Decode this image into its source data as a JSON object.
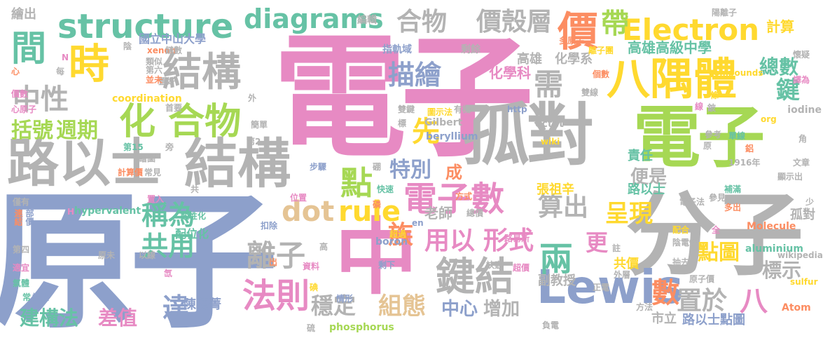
{
  "palette": {
    "pink": "#e78ac3",
    "gray": "#b3b3b3",
    "yellow": "#ffd92f",
    "blue": "#8da0cb",
    "green": "#a6d854",
    "teal": "#66c2a5",
    "orange": "#fc8d62",
    "tan": "#e5c494"
  },
  "words": [
    {
      "t": "電子",
      "c": "pink"
    },
    {
      "t": "原子",
      "c": "blue"
    },
    {
      "t": "分子",
      "c": "gray"
    },
    {
      "t": "電子",
      "c": "green"
    },
    {
      "t": "孤對",
      "c": "gray"
    },
    {
      "t": "中",
      "c": "pink"
    },
    {
      "t": "路以士",
      "c": "gray"
    },
    {
      "t": "結構",
      "c": "gray"
    },
    {
      "t": "Lewis",
      "c": "blue"
    },
    {
      "t": "鍵結",
      "c": "gray"
    },
    {
      "t": "電子數",
      "c": "pink"
    },
    {
      "t": "結構",
      "c": "gray"
    },
    {
      "t": "八隅體",
      "c": "yellow"
    },
    {
      "t": "structure",
      "c": "teal"
    },
    {
      "t": "Electron",
      "c": "yellow"
    },
    {
      "t": "diagrams",
      "c": "teal"
    },
    {
      "t": "化 合物",
      "c": "green"
    },
    {
      "t": "時",
      "c": "yellow"
    },
    {
      "t": "間",
      "c": "teal"
    },
    {
      "t": "價",
      "c": "orange"
    },
    {
      "t": "dot",
      "c": "tan"
    },
    {
      "t": "rule",
      "c": "yellow"
    },
    {
      "t": "法則",
      "c": "pink"
    },
    {
      "t": "離子",
      "c": "gray"
    },
    {
      "t": "兩",
      "c": "teal"
    },
    {
      "t": "點",
      "c": "green"
    },
    {
      "t": "中性",
      "c": "gray"
    },
    {
      "t": "括號",
      "c": "green"
    },
    {
      "t": "週期",
      "c": "green"
    },
    {
      "t": "合物",
      "c": "gray"
    },
    {
      "t": "價殼層",
      "c": "gray"
    },
    {
      "t": "帶",
      "c": "green"
    },
    {
      "t": "描繪",
      "c": "blue"
    },
    {
      "t": "需",
      "c": "gray"
    },
    {
      "t": "先",
      "c": "yellow"
    },
    {
      "t": "特別",
      "c": "blue"
    },
    {
      "t": "稱為",
      "c": "teal"
    },
    {
      "t": "共用",
      "c": "teal"
    },
    {
      "t": "族",
      "c": "orange"
    },
    {
      "t": "用以",
      "c": "pink"
    },
    {
      "t": "形式",
      "c": "pink"
    },
    {
      "t": "算出",
      "c": "gray"
    },
    {
      "t": "呈現",
      "c": "yellow"
    },
    {
      "t": "點圖",
      "c": "yellow"
    },
    {
      "t": "置於",
      "c": "gray"
    },
    {
      "t": "數",
      "c": "orange"
    },
    {
      "t": "八",
      "c": "pink"
    },
    {
      "t": "組態",
      "c": "tan"
    },
    {
      "t": "穩定",
      "c": "gray"
    },
    {
      "t": "達",
      "c": "blue"
    },
    {
      "t": "差值",
      "c": "pink"
    },
    {
      "t": "建構法",
      "c": "teal"
    },
    {
      "t": "中心",
      "c": "blue"
    },
    {
      "t": "增加",
      "c": "gray"
    },
    {
      "t": "標示",
      "c": "gray"
    },
    {
      "t": "更",
      "c": "pink"
    },
    {
      "t": "鍵",
      "c": "teal"
    },
    {
      "t": "總數",
      "c": "teal"
    },
    {
      "t": "計算",
      "c": "yellow"
    },
    {
      "t": "高雄高級中學",
      "c": "teal"
    },
    {
      "t": "便是",
      "c": "gray"
    },
    {
      "t": "成",
      "c": "orange"
    },
    {
      "t": "老師",
      "c": "gray"
    },
    {
      "t": "陳藝菁",
      "c": "blue"
    },
    {
      "t": "張祖辛",
      "c": "yellow"
    },
    {
      "t": "副教授",
      "c": "gray"
    },
    {
      "t": "路以士",
      "c": "teal"
    },
    {
      "t": "市立",
      "c": "gray"
    },
    {
      "t": "路以士點圖",
      "c": "blue"
    },
    {
      "t": "國立中山大學",
      "c": "blue"
    },
    {
      "t": "化學科",
      "c": "pink"
    },
    {
      "t": "化學系",
      "c": "gray"
    },
    {
      "t": "高雄",
      "c": "gray"
    },
    {
      "t": "責任",
      "c": "teal"
    },
    {
      "t": "孤對",
      "c": "gray"
    },
    {
      "t": "共價",
      "c": "yellow"
    },
    {
      "t": "配位化",
      "c": "teal"
    },
    {
      "t": "編輯",
      "c": "gray"
    },
    {
      "t": "指軌域",
      "c": "blue"
    },
    {
      "t": "剩餘",
      "c": "gray"
    },
    {
      "t": "多原子",
      "c": "orange"
    },
    {
      "t": "離子團",
      "c": "yellow"
    },
    {
      "t": "陽離子",
      "c": "gray"
    },
    {
      "t": "compounds",
      "c": "yellow"
    },
    {
      "t": "懷疑",
      "c": "gray"
    },
    {
      "t": "譯為",
      "c": "pink"
    },
    {
      "t": "個數",
      "c": "orange"
    },
    {
      "t": "雙線",
      "c": "gray"
    },
    {
      "t": "單線",
      "c": "teal"
    },
    {
      "t": "iodine",
      "c": "gray"
    },
    {
      "t": "beryllium",
      "c": "blue"
    },
    {
      "t": "octet",
      "c": "gray"
    },
    {
      "t": "Gilbert",
      "c": "gray"
    },
    {
      "t": "圖示法",
      "c": "yellow"
    },
    {
      "t": "http",
      "c": "blue"
    },
    {
      "t": "wiki",
      "c": "yellow"
    },
    {
      "t": "org",
      "c": "yellow"
    },
    {
      "t": "hypervalent",
      "c": "teal"
    },
    {
      "t": "coordination",
      "c": "yellow"
    },
    {
      "t": "xenon",
      "c": "orange"
    },
    {
      "t": "Molecule",
      "c": "orange"
    },
    {
      "t": "aluminium",
      "c": "teal"
    },
    {
      "t": "wikipedia",
      "c": "gray"
    },
    {
      "t": "boron",
      "c": "blue"
    },
    {
      "t": "sulfur",
      "c": "yellow"
    },
    {
      "t": "Atom",
      "c": "orange"
    },
    {
      "t": "phosphorus",
      "c": "green"
    },
    {
      "t": "電子法",
      "c": "gray"
    },
    {
      "t": "陰電性",
      "c": "gray"
    },
    {
      "t": "外層",
      "c": "gray"
    },
    {
      "t": "原子價",
      "c": "gray"
    },
    {
      "t": "超價",
      "c": "pink"
    },
    {
      "t": "剩下",
      "c": "blue"
    },
    {
      "t": "情形",
      "c": "blue"
    },
    {
      "t": "資料",
      "c": "pink"
    },
    {
      "t": "訣竅",
      "c": "gray"
    },
    {
      "t": "路易斯",
      "c": "pink"
    },
    {
      "t": "總價",
      "c": "gray"
    },
    {
      "t": "超過",
      "c": "yellow"
    },
    {
      "t": "位置",
      "c": "pink"
    },
    {
      "t": "步驟",
      "c": "blue"
    },
    {
      "t": "計算價",
      "c": "orange"
    },
    {
      "t": "繪圖",
      "c": "gray"
    },
    {
      "t": "常見",
      "c": "gray"
    },
    {
      "t": "置入",
      "c": "pink"
    },
    {
      "t": "僅有",
      "c": "gray"
    },
    {
      "t": "連結",
      "c": "orange"
    },
    {
      "t": "部價",
      "c": "blue"
    },
    {
      "t": "第四",
      "c": "gray"
    },
    {
      "t": "適宜",
      "c": "pink"
    },
    {
      "t": "氣體",
      "c": "teal"
    },
    {
      "t": "原未",
      "c": "gray"
    },
    {
      "t": "以線",
      "c": "gray"
    },
    {
      "t": "酸性化",
      "c": "teal"
    },
    {
      "t": "扣除",
      "c": "blue"
    },
    {
      "t": "方式",
      "c": "orange"
    },
    {
      "t": "快速",
      "c": "teal"
    },
    {
      "t": "有機",
      "c": "gray"
    },
    {
      "t": "雙鍵",
      "c": "gray"
    },
    {
      "t": "首要",
      "c": "gray"
    },
    {
      "t": "置好",
      "c": "gray"
    },
    {
      "t": "並未",
      "c": "orange"
    },
    {
      "t": "第六",
      "c": "gray"
    },
    {
      "t": "類似",
      "c": "gray"
    },
    {
      "t": "鏈數",
      "c": "gray"
    },
    {
      "t": "陰",
      "c": "gray"
    },
    {
      "t": "繪出",
      "c": "gray"
    },
    {
      "t": "價數",
      "c": "pink"
    },
    {
      "t": "心原子",
      "c": "pink"
    },
    {
      "t": "每",
      "c": "gray"
    },
    {
      "t": "心",
      "c": "orange"
    },
    {
      "t": "第15",
      "c": "teal"
    },
    {
      "t": "第2",
      "c": "gray"
    },
    {
      "t": "簡單",
      "c": "gray"
    },
    {
      "t": "1916年",
      "c": "gray"
    },
    {
      "t": "文章",
      "c": "gray"
    },
    {
      "t": "顯示出",
      "c": "gray"
    },
    {
      "t": "參考",
      "c": "gray"
    },
    {
      "t": "參見",
      "c": "gray"
    },
    {
      "t": "補滿",
      "c": "teal"
    },
    {
      "t": "多出",
      "c": "orange"
    },
    {
      "t": "配合",
      "c": "yellow"
    },
    {
      "t": "抽去",
      "c": "gray"
    },
    {
      "t": "方法",
      "c": "gray"
    },
    {
      "t": "正電",
      "c": "gray"
    },
    {
      "t": "負電",
      "c": "gray"
    },
    {
      "t": "鋁",
      "c": "orange"
    },
    {
      "t": "角",
      "c": "gray"
    },
    {
      "t": "條",
      "c": "yellow"
    },
    {
      "t": "鈹",
      "c": "gray"
    },
    {
      "t": "線",
      "c": "pink"
    },
    {
      "t": "硫",
      "c": "gray"
    },
    {
      "t": "碘",
      "c": "yellow"
    },
    {
      "t": "磷",
      "c": "orange"
    },
    {
      "t": "硼",
      "c": "gray"
    },
    {
      "t": "旁",
      "c": "gray"
    },
    {
      "t": "共",
      "c": "gray"
    },
    {
      "t": "註",
      "c": "gray"
    },
    {
      "t": "高",
      "c": "gray"
    },
    {
      "t": "外",
      "c": "gray"
    },
    {
      "t": "標",
      "c": "gray"
    },
    {
      "t": "全",
      "c": "pink"
    },
    {
      "t": "原",
      "c": "gray"
    },
    {
      "t": "氙",
      "c": "pink"
    },
    {
      "t": "出",
      "c": "orange"
    },
    {
      "t": "常",
      "c": "teal"
    },
    {
      "t": "惰性",
      "c": "blue"
    },
    {
      "t": "N",
      "c": "pink"
    },
    {
      "t": "H",
      "c": "pink"
    },
    {
      "t": "en",
      "c": "blue"
    },
    {
      "t": "少",
      "c": "gray"
    }
  ]
}
